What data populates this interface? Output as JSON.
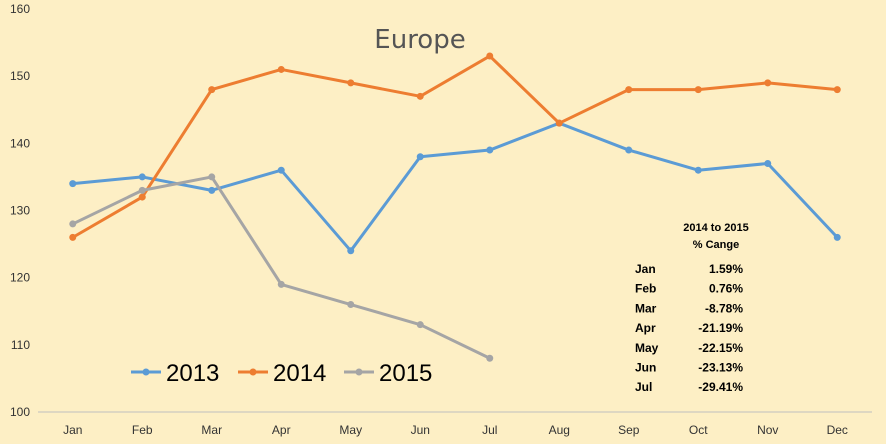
{
  "chart_data": {
    "type": "line",
    "title": "Europe",
    "categories": [
      "Jan",
      "Feb",
      "Mar",
      "Apr",
      "May",
      "Jun",
      "Jul",
      "Aug",
      "Sep",
      "Oct",
      "Nov",
      "Dec"
    ],
    "ylim": [
      100,
      160
    ],
    "yticks": [
      100,
      110,
      120,
      130,
      140,
      150,
      160
    ],
    "grid": false,
    "legend_position": "bottom-left",
    "series": [
      {
        "name": "2013",
        "color": "#5b9bd5",
        "values": [
          134,
          135,
          133,
          136,
          124,
          138,
          139,
          143,
          139,
          136,
          137,
          126
        ]
      },
      {
        "name": "2014",
        "color": "#ed7d31",
        "values": [
          126,
          132,
          148,
          151,
          149,
          147,
          153,
          143,
          148,
          148,
          149,
          148
        ]
      },
      {
        "name": "2015",
        "color": "#a5a5a5",
        "values": [
          128,
          133,
          135,
          119,
          116,
          113,
          108,
          null,
          null,
          null,
          null,
          null
        ]
      }
    ],
    "table": {
      "header": [
        "2014 to 2015",
        "% Cange"
      ],
      "rows": [
        {
          "month": "Jan",
          "value": "1.59%"
        },
        {
          "month": "Feb",
          "value": "0.76%"
        },
        {
          "month": "Mar",
          "value": "-8.78%"
        },
        {
          "month": "Apr",
          "value": "-21.19%"
        },
        {
          "month": "May",
          "value": "-22.15%"
        },
        {
          "month": "Jun",
          "value": "-23.13%"
        },
        {
          "month": "Jul",
          "value": "-29.41%"
        }
      ]
    }
  }
}
